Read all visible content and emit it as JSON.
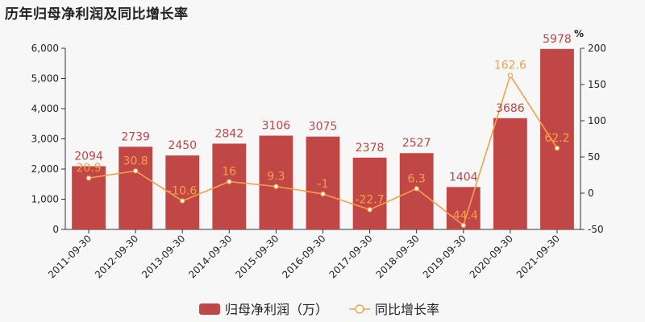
{
  "title": "历年归母净利润及同比增长率",
  "colors": {
    "bar": "#c14646",
    "line": "#f5a04a",
    "axis": "#333333"
  },
  "chart_data": {
    "type": "bar",
    "title": "历年归母净利润及同比增长率",
    "categories": [
      "2011-09-30",
      "2012-09-30",
      "2013-09-30",
      "2014-09-30",
      "2015-09-30",
      "2016-09-30",
      "2017-09-30",
      "2018-09-30",
      "2019-09-30",
      "2020-09-30",
      "2021-09-30"
    ],
    "series": [
      {
        "name": "归母净利润（万）",
        "type": "bar",
        "axis": "left",
        "values": [
          2094,
          2739,
          2450,
          2842,
          3106,
          3075,
          2378,
          2527,
          1404,
          3686,
          5978
        ],
        "labels": [
          "2094",
          "2739",
          "2450",
          "2842",
          "3106",
          "3075",
          "2378",
          "2527",
          "1404",
          "3686",
          "5978"
        ]
      },
      {
        "name": "同比增长率",
        "type": "line",
        "axis": "right",
        "values": [
          20.9,
          30.8,
          -10.6,
          16,
          9.3,
          -1,
          -22.7,
          6.3,
          -44.4,
          162.6,
          62.2
        ],
        "labels": [
          "20.9",
          "30.8",
          "-10.6",
          "16",
          "9.3",
          "-1",
          "-22.7",
          "6.3",
          "-44.4",
          "162.6",
          "62.2"
        ]
      }
    ],
    "y_left": {
      "min": 0,
      "max": 6000,
      "ticks": [
        "0",
        "1,000",
        "2,000",
        "3,000",
        "4,000",
        "5,000",
        "6,000"
      ]
    },
    "y_right": {
      "min": -50,
      "max": 200,
      "unit": "%",
      "ticks": [
        "-50",
        "0",
        "50",
        "100",
        "150",
        "200"
      ]
    },
    "grid": false,
    "legend_position": "bottom-center"
  }
}
